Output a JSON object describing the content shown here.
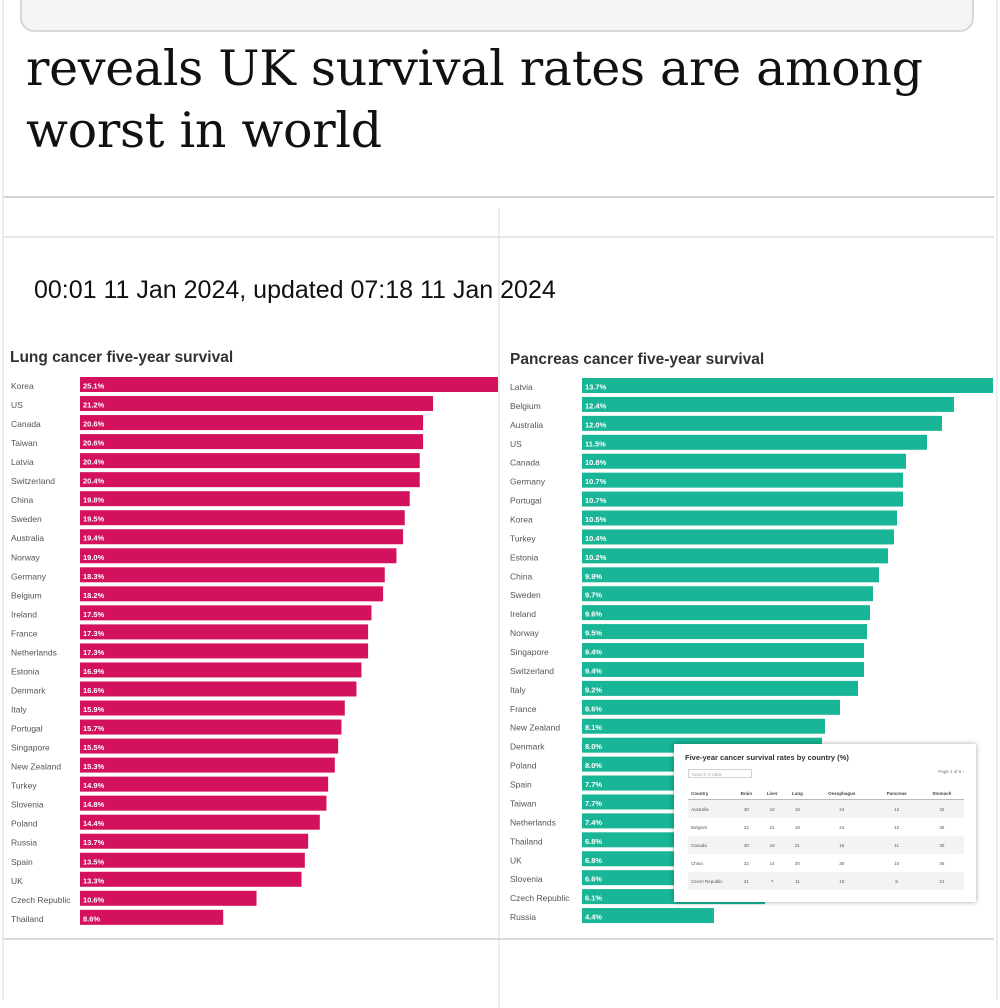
{
  "article": {
    "headline": "reveals UK survival rates are among worst in world",
    "timestamp": "00:01 11 Jan 2024, updated 07:18 11 Jan 2024"
  },
  "colors": {
    "lung": "#d3115c",
    "pancreas": "#18b596"
  },
  "chart_data": [
    {
      "type": "bar",
      "orientation": "horizontal",
      "title": "Lung cancer five-year survival",
      "xlabel": "",
      "ylabel": "",
      "unit": "%",
      "xlim": [
        0,
        25.1
      ],
      "categories": [
        "Korea",
        "US",
        "Canada",
        "Taiwan",
        "Latvia",
        "Switzerland",
        "China",
        "Sweden",
        "Australia",
        "Norway",
        "Germany",
        "Belgium",
        "Ireland",
        "France",
        "Netherlands",
        "Estonia",
        "Denmark",
        "Italy",
        "Portugal",
        "Singapore",
        "New Zealand",
        "Turkey",
        "Slovenia",
        "Poland",
        "Russia",
        "Spain",
        "UK",
        "Czech Republic",
        "Thailand"
      ],
      "values": [
        25.1,
        21.2,
        20.6,
        20.6,
        20.4,
        20.4,
        19.8,
        19.5,
        19.4,
        19.0,
        18.3,
        18.2,
        17.5,
        17.3,
        17.3,
        16.9,
        16.6,
        15.9,
        15.7,
        15.5,
        15.3,
        14.9,
        14.8,
        14.4,
        13.7,
        13.5,
        13.3,
        10.6,
        8.6
      ],
      "labels": [
        "25.1%",
        "21.2%",
        "20.6%",
        "20.6%",
        "20.4%",
        "20.4%",
        "19.8%",
        "19.5%",
        "19.4%",
        "19.0%",
        "18.3%",
        "18.2%",
        "17.5%",
        "17.3%",
        "17.3%",
        "16.9%",
        "16.6%",
        "15.9%",
        "15.7%",
        "15.5%",
        "15.3%",
        "14.9%",
        "14.8%",
        "14.4%",
        "13.7%",
        "13.5%",
        "13.3%",
        "10.6%",
        "8.6%"
      ]
    },
    {
      "type": "bar",
      "orientation": "horizontal",
      "title": "Pancreas cancer five-year survival",
      "xlabel": "",
      "ylabel": "",
      "unit": "%",
      "xlim": [
        0,
        13.7
      ],
      "categories": [
        "Latvia",
        "Belgium",
        "Australia",
        "US",
        "Canada",
        "Germany",
        "Portugal",
        "Korea",
        "Turkey",
        "Estonia",
        "China",
        "Sweden",
        "Ireland",
        "Norway",
        "Singapore",
        "Switzerland",
        "Italy",
        "France",
        "New Zealand",
        "Denmark",
        "Poland",
        "Spain",
        "Taiwan",
        "Netherlands",
        "Thailand",
        "UK",
        "Slovenia",
        "Czech Republic",
        "Russia"
      ],
      "values": [
        13.7,
        12.4,
        12.0,
        11.5,
        10.8,
        10.7,
        10.7,
        10.5,
        10.4,
        10.2,
        9.9,
        9.7,
        9.6,
        9.5,
        9.4,
        9.4,
        9.2,
        8.6,
        8.1,
        8.0,
        8.0,
        7.7,
        7.7,
        7.4,
        6.8,
        6.8,
        6.6,
        6.1,
        4.4
      ],
      "labels": [
        "13.7%",
        "12.4%",
        "12.0%",
        "11.5%",
        "10.8%",
        "10.7%",
        "10.7%",
        "10.5%",
        "10.4%",
        "10.2%",
        "9.9%",
        "9.7%",
        "9.6%",
        "9.5%",
        "9.4%",
        "9.4%",
        "9.2%",
        "8.6%",
        "8.1%",
        "8.0%",
        "8.0%",
        "7.7%",
        "7.7%",
        "7.4%",
        "6.8%",
        "6.8%",
        "6.6%",
        "6.1%",
        "4.4%"
      ]
    },
    {
      "type": "table",
      "title": "Five-year cancer survival rates by country (%)",
      "search_placeholder": "Search in table",
      "pager": "Page 1 of 6",
      "columns": [
        "Country",
        "Brain",
        "Liver",
        "Lung",
        "Oesophagus",
        "Pancreas",
        "Stomach"
      ],
      "rows": [
        [
          "Australia",
          "30",
          "19",
          "19",
          "24",
          "12",
          "32"
        ],
        [
          "Belgium",
          "32",
          "21",
          "18",
          "24",
          "12",
          "38"
        ],
        [
          "Canada",
          "30",
          "19",
          "21",
          "16",
          "11",
          "30"
        ],
        [
          "China",
          "32",
          "14",
          "20",
          "30",
          "10",
          "36"
        ],
        [
          "Czech Republic",
          "21",
          "7",
          "11",
          "10",
          "6",
          "21"
        ]
      ]
    }
  ]
}
